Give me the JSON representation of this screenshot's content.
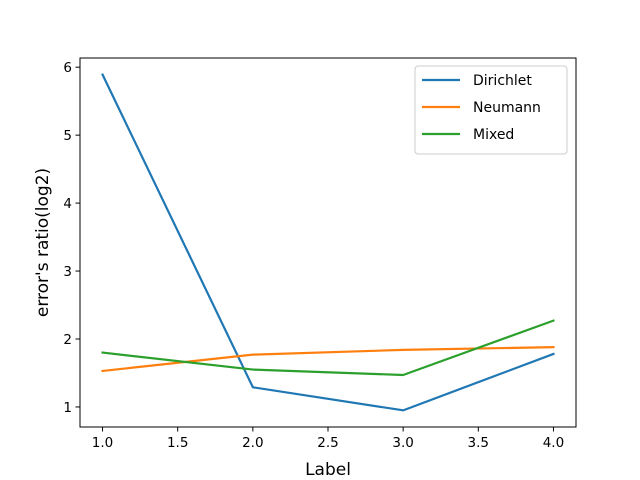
{
  "chart_data": {
    "type": "line",
    "title": "",
    "xlabel": "Label",
    "ylabel": "error's ratio(log2)",
    "x": [
      1.0,
      2.0,
      3.0,
      4.0
    ],
    "series": [
      {
        "name": "Dirichlet",
        "color": "#1f77b4",
        "values": [
          5.89,
          1.29,
          0.95,
          1.78
        ]
      },
      {
        "name": "Neumann",
        "color": "#ff7f0e",
        "values": [
          1.53,
          1.77,
          1.84,
          1.88
        ]
      },
      {
        "name": "Mixed",
        "color": "#2ca02c",
        "values": [
          1.8,
          1.55,
          1.47,
          2.27
        ]
      }
    ],
    "xlim": [
      0.85,
      4.15
    ],
    "ylim": [
      0.705,
      6.135
    ],
    "xticks": [
      "1.0",
      "1.5",
      "2.0",
      "2.5",
      "3.0",
      "3.5",
      "4.0"
    ],
    "yticks": [
      "1",
      "2",
      "3",
      "4",
      "5",
      "6"
    ],
    "grid": false,
    "legend_position": "top-right"
  }
}
